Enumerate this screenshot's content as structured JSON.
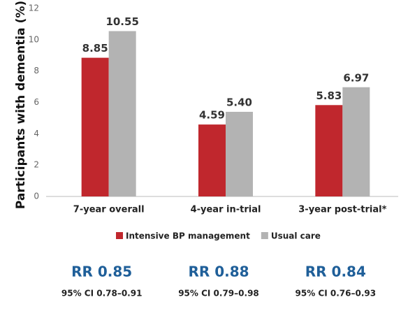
{
  "chart_data": {
    "type": "bar",
    "y_label": "Participants with dementia (%)",
    "categories": [
      "7-year overall",
      "4-year in-trial",
      "3-year post-trial*"
    ],
    "series": [
      {
        "name": "Intensive BP management",
        "color": "#c0272d",
        "values": [
          8.85,
          4.59,
          5.83
        ],
        "value_labels": [
          "8.85",
          "4.59",
          "5.83"
        ]
      },
      {
        "name": "Usual care",
        "color": "#b3b3b3",
        "values": [
          10.55,
          5.4,
          6.97
        ],
        "value_labels": [
          "10.55",
          "5.40",
          "6.97"
        ]
      }
    ],
    "ylim": [
      0,
      12
    ],
    "yticks": [
      0,
      2,
      4,
      6,
      8,
      10,
      12
    ],
    "grid": false,
    "annotations": [
      {
        "rr": "RR 0.85",
        "ci": "95% CI 0.78–0.91"
      },
      {
        "rr": "RR 0.88",
        "ci": "95% CI 0.79–0.98"
      },
      {
        "rr": "RR 0.84",
        "ci": "95% CI 0.76–0.93"
      }
    ]
  }
}
